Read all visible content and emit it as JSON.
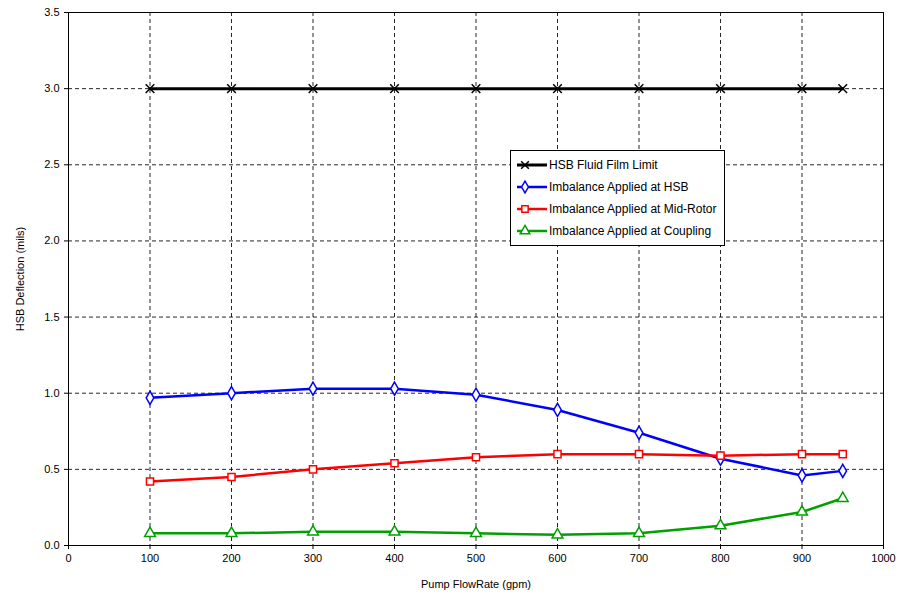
{
  "chart_data": {
    "type": "line",
    "x_label": "Pump FlowRate (gpm)",
    "y_label": "HSB Deflection (mils)",
    "x": [
      100,
      200,
      300,
      400,
      500,
      600,
      700,
      800,
      900,
      950
    ],
    "series": [
      {
        "name": "HSB Fluid Film Limit",
        "color": "#000000",
        "marker": "x",
        "values": [
          3.0,
          3.0,
          3.0,
          3.0,
          3.0,
          3.0,
          3.0,
          3.0,
          3.0,
          3.0
        ]
      },
      {
        "name": "Imbalance Applied at HSB",
        "color": "#0000ff",
        "marker": "diamond",
        "values": [
          0.97,
          1.0,
          1.03,
          1.03,
          0.99,
          0.89,
          0.74,
          0.57,
          0.46,
          0.49
        ]
      },
      {
        "name": "Imbalance Applied at Mid-Rotor",
        "color": "#ff0000",
        "marker": "square",
        "values": [
          0.42,
          0.45,
          0.5,
          0.54,
          0.58,
          0.6,
          0.6,
          0.59,
          0.6,
          0.6
        ]
      },
      {
        "name": "Imbalance Applied at Coupling",
        "color": "#00a000",
        "marker": "triangle",
        "values": [
          0.08,
          0.08,
          0.09,
          0.09,
          0.08,
          0.07,
          0.08,
          0.13,
          0.22,
          0.31
        ]
      }
    ],
    "xlim": [
      0,
      1000
    ],
    "xticks": [
      0,
      100,
      200,
      300,
      400,
      500,
      600,
      700,
      800,
      900,
      1000
    ],
    "ylim": [
      0,
      3.5
    ],
    "yticks": [
      {
        "value": 0,
        "label": "0.0"
      },
      0.5,
      {
        "value": 1,
        "label": "1.0"
      },
      1.5,
      {
        "value": 2,
        "label": "2.0"
      },
      2.5,
      {
        "value": 3,
        "label": "3.0"
      },
      3.5
    ],
    "grid": true,
    "legend": "right"
  }
}
